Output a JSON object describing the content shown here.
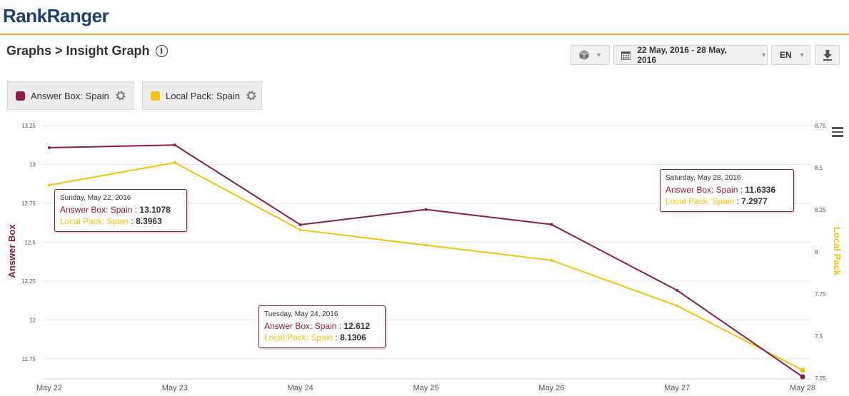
{
  "brand": {
    "part1": "Rank",
    "part2": "Ranger"
  },
  "page": {
    "title": "Graphs > Insight Graph",
    "info_icon": "i"
  },
  "controls": {
    "date_range": "22 May, 2016 - 28 May, 2016",
    "language": "EN"
  },
  "series_buttons": [
    {
      "label": "Answer Box: Spain",
      "color": "#8c1a4b"
    },
    {
      "label": "Local Pack: Spain",
      "color": "#f5c30c"
    }
  ],
  "colors": {
    "answer_box": "#8c1a4b",
    "local_pack": "#f5c30c",
    "accent": "#f0b323",
    "brand": "#1d3f73"
  },
  "chart_data": {
    "type": "line",
    "categories": [
      "May 22",
      "May 23",
      "May 24",
      "May 25",
      "May 26",
      "May 27",
      "May 28"
    ],
    "series": [
      {
        "name": "Answer Box: Spain",
        "axis": "left",
        "color": "#8c1a4b",
        "values": [
          13.1078,
          13.125,
          12.612,
          12.71,
          12.614,
          12.19,
          11.6336
        ]
      },
      {
        "name": "Local Pack: Spain",
        "axis": "right",
        "color": "#f5c30c",
        "values": [
          8.3963,
          8.53,
          8.1306,
          8.04,
          7.95,
          7.68,
          7.2977
        ]
      }
    ],
    "left_axis": {
      "label": "Answer Box",
      "min": 11.625,
      "max": 13.25,
      "ticks": [
        "13.25",
        "13",
        "12.75",
        "12.5",
        "12.25",
        "12",
        "11.75"
      ]
    },
    "right_axis": {
      "label": "Local Pack",
      "min": 7.25,
      "max": 8.75,
      "ticks": [
        "8.75",
        "8.5",
        "8.25",
        "8",
        "7.75",
        "7.5",
        "7.25"
      ]
    },
    "grid": true,
    "tooltips": [
      {
        "date": "Sunday, May 22, 2016",
        "ab_label": "Answer Box: Spain",
        "ab_value": "13.1078",
        "lp_label": "Local Pack: Spain",
        "lp_value": "8.3963"
      },
      {
        "date": "Tuesday, May 24, 2016",
        "ab_label": "Answer Box: Spain",
        "ab_value": "12.612",
        "lp_label": "Local Pack: Spain",
        "lp_value": "8.1306"
      },
      {
        "date": "Saturday, May 28, 2016",
        "ab_label": "Answer Box: Spain",
        "ab_value": "11.6336",
        "lp_label": "Local Pack: Spain",
        "lp_value": "7.2977"
      }
    ]
  }
}
